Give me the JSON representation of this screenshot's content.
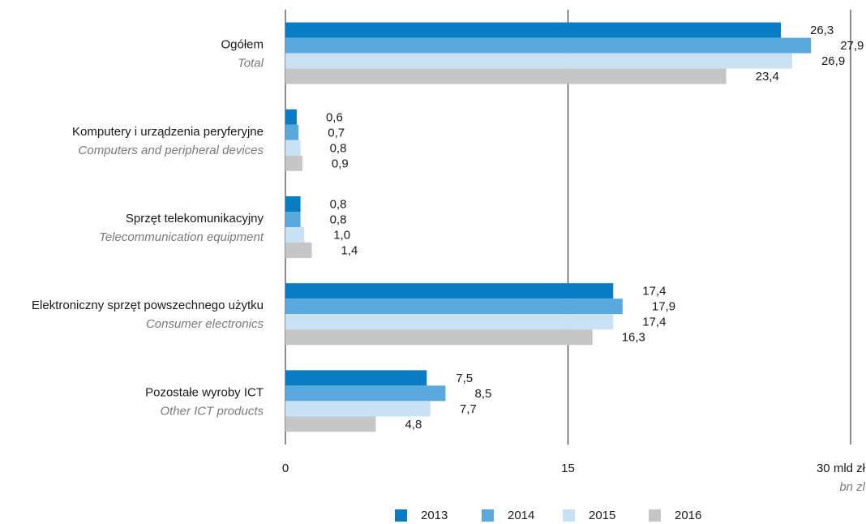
{
  "chart_data": {
    "type": "bar",
    "orientation": "horizontal",
    "categories": [
      "Ogółem",
      "Komputery i urządzenia peryferyjne",
      "Sprzęt telekomunikacyjny",
      "Elektroniczny sprzęt powszechnego użytku",
      "Pozostałe wyroby ICT"
    ],
    "categories_en": [
      "Total",
      "Computers and peripheral devices",
      "Telecommunication equipment",
      "Consumer electronics",
      "Other ICT products"
    ],
    "series": [
      {
        "name": "2013",
        "color": "#0a7cc4",
        "values": [
          26.3,
          0.6,
          0.8,
          17.4,
          7.5
        ],
        "value_labels": [
          "26,3",
          "0,6",
          "0,8",
          "17,4",
          "7,5"
        ]
      },
      {
        "name": "2014",
        "color": "#5aa9de",
        "values": [
          27.9,
          0.7,
          0.8,
          17.9,
          8.5
        ],
        "value_labels": [
          "27,9",
          "0,7",
          "0,8",
          "17,9",
          "8,5"
        ]
      },
      {
        "name": "2015",
        "color": "#c8e1f4",
        "values": [
          26.9,
          0.8,
          1.0,
          17.4,
          7.7
        ],
        "value_labels": [
          "26,9",
          "0,8",
          "1,0",
          "17,4",
          "7,7"
        ]
      },
      {
        "name": "2016",
        "color": "#c6c6c6",
        "values": [
          23.4,
          0.9,
          1.4,
          16.3,
          4.8
        ],
        "value_labels": [
          "23,4",
          "0,9",
          "1,4",
          "16,3",
          "4,8"
        ]
      }
    ],
    "xlim": [
      0,
      30
    ],
    "xticks": [
      0,
      15,
      {
        "value": 30,
        "label": "30 mld zł"
      }
    ],
    "x_unit_en": "bn zl",
    "grid": true,
    "legend": "bottom"
  }
}
